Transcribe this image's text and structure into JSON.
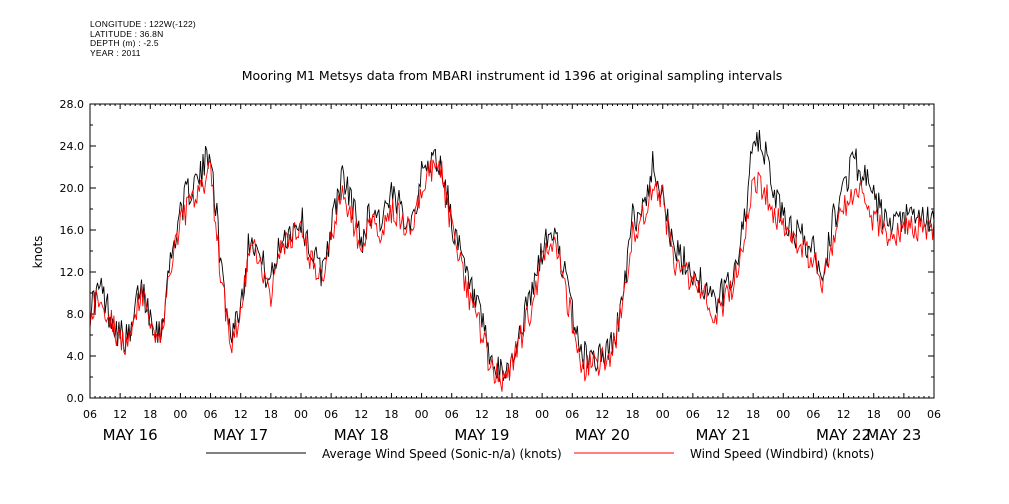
{
  "meta": {
    "longitude": "LONGITUDE : 122W(-122)",
    "latitude": "LATITUDE : 36.8N",
    "depth": "DEPTH (m) : -2.5",
    "year": "YEAR : 2011"
  },
  "chart_data": {
    "type": "line",
    "title": "Mooring M1 Metsys data from MBARI instrument id 1396 at original sampling intervals",
    "ylabel": "knots",
    "xlabel": "",
    "ylim": [
      0,
      28
    ],
    "xlim_hours": [
      0,
      168
    ],
    "y_ticks": [
      "0.0",
      "4.0",
      "8.0",
      "12.0",
      "16.0",
      "20.0",
      "24.0",
      "28.0"
    ],
    "x_hour_ticks": [
      "06",
      "12",
      "18",
      "00",
      "06",
      "12",
      "18",
      "00",
      "06",
      "12",
      "18",
      "00",
      "06",
      "12",
      "18",
      "00",
      "06",
      "12",
      "18",
      "00",
      "06",
      "12",
      "18",
      "00",
      "06",
      "12",
      "18",
      "00",
      "06"
    ],
    "date_labels": [
      "MAY 16",
      "MAY 17",
      "MAY 18",
      "MAY 19",
      "MAY 20",
      "MAY 21",
      "MAY 22",
      "MAY 23"
    ],
    "grid": false,
    "legend_position": "bottom",
    "series": [
      {
        "name": "Average Wind Speed (Sonic-n/a) (knots)",
        "color": "#000000",
        "x": [
          0,
          2,
          4,
          6,
          8,
          10,
          12,
          14,
          16,
          18,
          20,
          22,
          24,
          26,
          28,
          30,
          32,
          34,
          36,
          38,
          40,
          42,
          44,
          46,
          48,
          50,
          52,
          54,
          56,
          58,
          60,
          62,
          64,
          66,
          68,
          70,
          72,
          74,
          76,
          78,
          80,
          82,
          84,
          86,
          88,
          90,
          92,
          94,
          96,
          98,
          100,
          102,
          104,
          106,
          108,
          110,
          112,
          114,
          116,
          118,
          120,
          122,
          124,
          126,
          128,
          130,
          132,
          134,
          136,
          138,
          140,
          142,
          144,
          146,
          148,
          150,
          152,
          154,
          156,
          158,
          160,
          162,
          164,
          166,
          168
        ],
        "y": [
          8.5,
          10.5,
          8,
          6,
          5.5,
          11,
          8,
          6,
          13,
          18,
          20,
          21,
          24,
          13,
          6,
          9,
          16,
          13,
          11,
          15,
          16,
          17,
          14,
          12,
          16,
          21,
          19,
          15,
          18,
          17,
          19,
          18,
          17,
          21,
          23,
          22,
          17,
          13,
          10,
          7,
          3,
          2,
          3.5,
          7,
          10,
          14,
          16,
          13,
          8,
          4,
          4,
          4,
          5,
          9,
          17,
          18,
          22,
          20,
          14,
          13,
          12,
          11,
          9,
          10,
          12,
          16,
          24,
          24,
          20,
          17,
          16,
          15,
          14,
          12,
          17,
          20,
          23,
          21,
          19,
          17,
          16,
          17,
          17,
          17,
          17
        ],
        "noise": 1.6
      },
      {
        "name": "Wind Speed (Windbird) (knots)",
        "color": "#ff0000",
        "x": [
          0,
          2,
          4,
          6,
          8,
          10,
          12,
          14,
          16,
          18,
          20,
          22,
          24,
          26,
          28,
          30,
          32,
          34,
          36,
          38,
          40,
          42,
          44,
          46,
          48,
          50,
          52,
          54,
          56,
          58,
          60,
          62,
          64,
          66,
          68,
          70,
          72,
          74,
          76,
          78,
          80,
          82,
          84,
          86,
          88,
          90,
          92,
          94,
          96,
          98,
          100,
          102,
          104,
          106,
          108,
          110,
          112,
          114,
          116,
          118,
          120,
          122,
          124,
          126,
          128,
          130,
          132,
          134,
          136,
          138,
          140,
          142,
          144,
          146,
          148,
          150,
          152,
          154,
          156,
          158,
          160,
          162,
          164,
          166,
          168
        ],
        "y": [
          8,
          10,
          7.5,
          5.5,
          5,
          10,
          7.5,
          5.5,
          12,
          17,
          18.5,
          19.5,
          22,
          12,
          5,
          8,
          15,
          12,
          10,
          14,
          15,
          16,
          13,
          11,
          15,
          19.5,
          17.5,
          14,
          17,
          16,
          18,
          17,
          16,
          20,
          22,
          21.5,
          16,
          12,
          9,
          6,
          2.5,
          1.5,
          3,
          6,
          9,
          13,
          15,
          12,
          7,
          3,
          3,
          3.5,
          4.5,
          8.5,
          16,
          17,
          20,
          19,
          13,
          12,
          11,
          10,
          8,
          9,
          11,
          15,
          20.5,
          20,
          18,
          16,
          15,
          14,
          13,
          11,
          15.5,
          18,
          20,
          19,
          17,
          16,
          15,
          16,
          16,
          16,
          16
        ],
        "noise": 1.4
      }
    ]
  }
}
